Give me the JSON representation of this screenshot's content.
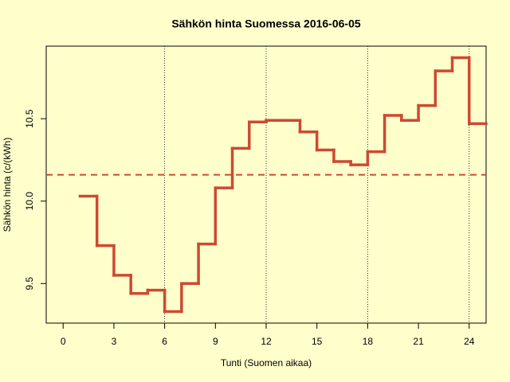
{
  "chart_data": {
    "type": "step",
    "title": "Sähkön hinta Suomessa 2016-06-05",
    "xlabel": "Tunti (Suomen aikaa)",
    "ylabel": "Sähkön hinta (c/(kWh)",
    "x": [
      1,
      2,
      3,
      4,
      5,
      6,
      7,
      8,
      9,
      10,
      11,
      12,
      13,
      14,
      15,
      16,
      17,
      18,
      19,
      20,
      21,
      22,
      23,
      24
    ],
    "series": [
      {
        "color": "#cc4a32",
        "values": [
          10.03,
          9.73,
          9.55,
          9.44,
          9.46,
          9.33,
          9.5,
          9.74,
          10.08,
          10.32,
          10.48,
          10.49,
          10.49,
          10.42,
          10.31,
          10.24,
          10.22,
          10.3,
          10.52,
          10.49,
          10.58,
          10.79,
          10.87,
          10.47
        ]
      }
    ],
    "mean_line": 10.16,
    "vlines": [
      6,
      12,
      18,
      24
    ],
    "xlim": [
      -1,
      25
    ],
    "ylim": [
      9.26,
      10.94
    ],
    "xticks": [
      0,
      3,
      6,
      9,
      12,
      15,
      18,
      21,
      24
    ],
    "yticks": [
      9.5,
      {
        "value": 10,
        "label": "10.0"
      },
      10.5
    ]
  }
}
